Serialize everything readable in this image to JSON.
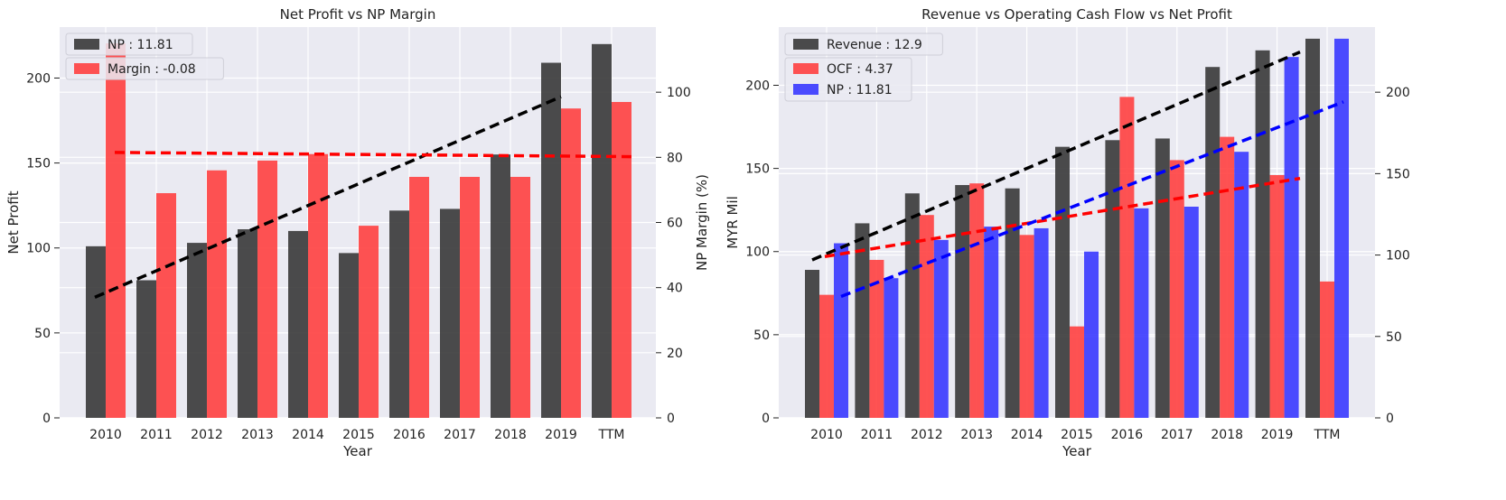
{
  "chart_data": [
    {
      "type": "bar",
      "title": "Net Profit vs NP Margin",
      "xlabel": "Year",
      "ylabel": "Net Profit",
      "y2label": "NP Margin (%)",
      "categories": [
        "2010",
        "2011",
        "2012",
        "2013",
        "2014",
        "2015",
        "2016",
        "2017",
        "2018",
        "2019",
        "TTM"
      ],
      "ylim": [
        0,
        230
      ],
      "y2lim": [
        0,
        120
      ],
      "yticks": [
        0,
        50,
        100,
        150,
        200
      ],
      "y2ticks": [
        0,
        20,
        40,
        60,
        80,
        100
      ],
      "grid": true,
      "legend_position": "top-left",
      "series": [
        {
          "name": "NP : 11.81",
          "axis": "left",
          "color": "#333333",
          "values": [
            101,
            81,
            103,
            111,
            110,
            97,
            122,
            123,
            155,
            209,
            220
          ],
          "trend": [
            71,
            189
          ]
        },
        {
          "name": "Margin : -0.08",
          "axis": "right",
          "color": "#ff3b3b",
          "values": [
            115,
            69,
            76,
            79,
            81,
            59,
            74,
            74,
            74,
            95,
            97
          ],
          "trend": [
            81.5,
            80.2
          ]
        }
      ]
    },
    {
      "type": "bar",
      "title": "Revenue vs Operating Cash Flow vs Net Profit",
      "xlabel": "Year",
      "ylabel": "MYR Mil",
      "categories": [
        "2010",
        "2011",
        "2012",
        "2013",
        "2014",
        "2015",
        "2016",
        "2017",
        "2018",
        "2019",
        "TTM"
      ],
      "ylim": [
        0,
        235
      ],
      "y2lim": [
        0,
        240
      ],
      "yticks": [
        0,
        50,
        100,
        150,
        200
      ],
      "y2ticks": [
        0,
        50,
        100,
        150,
        200
      ],
      "grid": true,
      "legend_position": "top-left",
      "series": [
        {
          "name": "Revenue : 12.9",
          "color": "#333333",
          "values": [
            89,
            117,
            135,
            140,
            138,
            163,
            167,
            168,
            211,
            221,
            228
          ],
          "trend": [
            95,
            220
          ]
        },
        {
          "name": "OCF : 4.37",
          "color": "#ff3b3b",
          "values": [
            74,
            95,
            122,
            141,
            110,
            55,
            193,
            155,
            169,
            146,
            82
          ],
          "trend": [
            97,
            144
          ]
        },
        {
          "name": "NP : 11.81",
          "color": "#3333ff",
          "values": [
            105,
            84,
            107,
            115,
            114,
            100,
            126,
            127,
            160,
            217,
            228
          ],
          "trend": [
            73,
            190
          ]
        }
      ]
    }
  ]
}
